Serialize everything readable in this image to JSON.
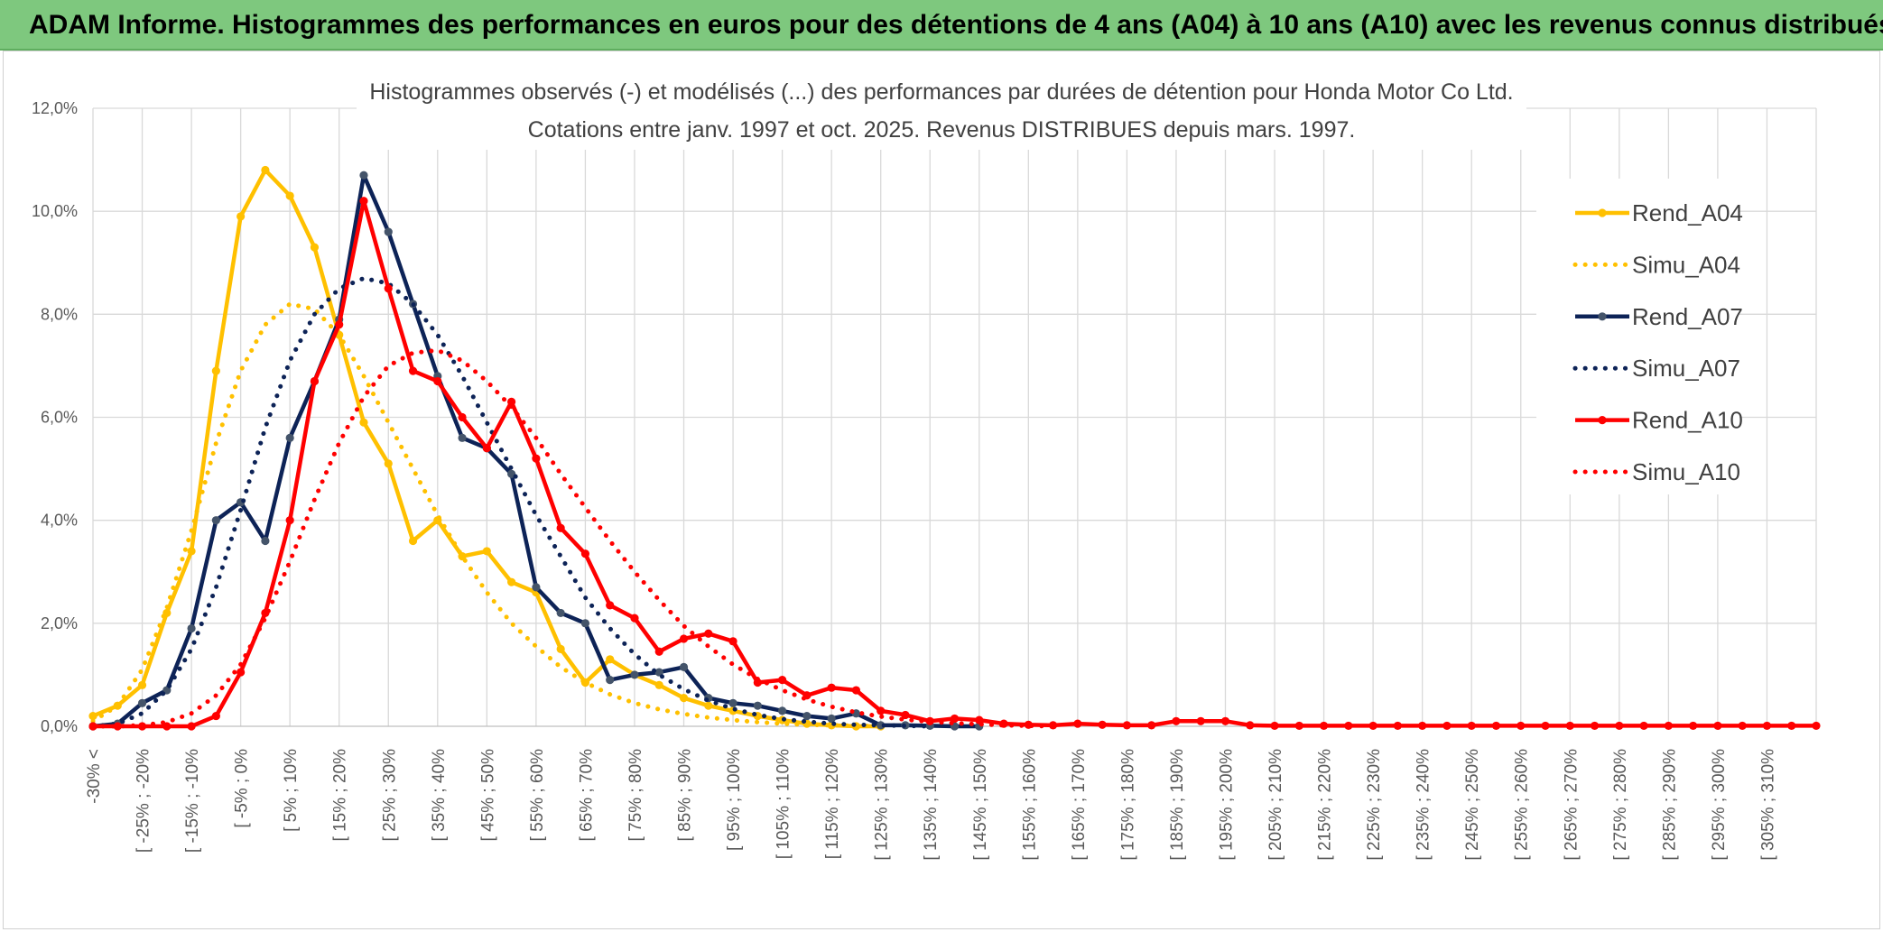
{
  "banner": {
    "title": "ADAM Informe. Histogrammes des performances en euros pour des détentions de 4 ans (A04) à 10 ans (A10) avec les revenus connus distribués"
  },
  "chart_data": {
    "type": "line",
    "title_line1": "Histogrammes observés (-) et modélisés (...) des performances par durées de détention pour Honda Motor Co Ltd.",
    "title_line2": "Cotations entre janv. 1997 et oct. 2025. Revenus DISTRIBUES depuis mars. 1997.",
    "ylim": [
      0,
      12
    ],
    "y_ticks": [
      "0,0%",
      "2,0%",
      "4,0%",
      "6,0%",
      "8,0%",
      "10,0%",
      "12,0%"
    ],
    "x_labels": [
      "-30% <",
      "[ -25% ; -20%",
      "[ -15% ; -10%",
      "[ -5% ; 0%",
      "[ 5% ; 10%",
      "[ 15% ; 20%",
      "[ 25% ; 30%",
      "[ 35% ; 40%",
      "[ 45% ; 50%",
      "[ 55% ; 60%",
      "[ 65% ; 70%",
      "[ 75% ; 80%",
      "[ 85% ; 90%",
      "[ 95% ; 100%",
      "[ 105% ; 110%",
      "[ 115% ; 120%",
      "[ 125% ; 130%",
      "[ 135% ; 140%",
      "[ 145% ; 150%",
      "[ 155% ; 160%",
      "[ 165% ; 170%",
      "[ 175% ; 180%",
      "[ 185% ; 190%",
      "[ 195% ; 200%",
      "[ 205% ; 210%",
      "[ 215% ; 220%",
      "[ 225% ; 230%",
      "[ 235% ; 240%",
      "[ 245% ; 250%",
      "[ 255% ; 260%",
      "[ 265% ; 270%",
      "[ 275% ; 280%",
      "[ 285% ; 290%",
      "[ 295% ; 300%",
      "[ 305% ; 310%"
    ],
    "grid": true,
    "legend_position": "right",
    "series": [
      {
        "name": "Rend_A04",
        "style": "solid",
        "color": "#ffc000",
        "values": [
          0.2,
          0.4,
          0.8,
          2.2,
          3.4,
          6.9,
          9.9,
          10.8,
          10.3,
          9.3,
          7.6,
          5.9,
          5.1,
          3.6,
          4.0,
          3.3,
          3.4,
          2.8,
          2.6,
          1.5,
          0.85,
          1.3,
          1.0,
          0.8,
          0.55,
          0.4,
          0.3,
          0.2,
          0.12,
          0.05,
          0.02,
          0.0,
          0.0
        ]
      },
      {
        "name": "Simu_A04",
        "style": "dotted",
        "color": "#ffc000",
        "values": [
          0.1,
          0.4,
          1.1,
          2.3,
          3.8,
          5.5,
          6.9,
          7.8,
          8.2,
          8.1,
          7.6,
          6.8,
          5.9,
          5.0,
          4.1,
          3.3,
          2.6,
          2.0,
          1.55,
          1.15,
          0.85,
          0.62,
          0.45,
          0.33,
          0.24,
          0.17,
          0.12,
          0.08,
          0.05,
          0.03,
          0.02,
          0.01,
          0.0
        ]
      },
      {
        "name": "Rend_A07",
        "style": "solid",
        "color": "#0d2357",
        "values": [
          0.0,
          0.05,
          0.45,
          0.7,
          1.9,
          4.0,
          4.35,
          3.6,
          5.6,
          6.7,
          7.9,
          10.7,
          9.6,
          8.2,
          6.8,
          5.6,
          5.4,
          4.9,
          2.7,
          2.2,
          2.0,
          0.9,
          1.0,
          1.05,
          1.15,
          0.55,
          0.45,
          0.4,
          0.3,
          0.2,
          0.15,
          0.25,
          0.02,
          0.02,
          0.01,
          0.0,
          0.0
        ]
      },
      {
        "name": "Simu_A07",
        "style": "dotted",
        "color": "#0d2357",
        "values": [
          0.0,
          0.05,
          0.25,
          0.7,
          1.5,
          2.7,
          4.2,
          5.8,
          7.1,
          8.0,
          8.5,
          8.7,
          8.6,
          8.2,
          7.6,
          6.8,
          5.9,
          5.0,
          4.1,
          3.3,
          2.5,
          1.9,
          1.4,
          1.0,
          0.72,
          0.5,
          0.34,
          0.22,
          0.14,
          0.09,
          0.05,
          0.03,
          0.02,
          0.01,
          0.0
        ]
      },
      {
        "name": "Rend_A10",
        "style": "solid",
        "color": "#ff0000",
        "values": [
          0.0,
          0.0,
          0.0,
          0.0,
          0.0,
          0.2,
          1.05,
          2.2,
          4.0,
          6.7,
          7.8,
          10.2,
          8.5,
          6.9,
          6.7,
          6.0,
          5.4,
          6.3,
          5.2,
          3.85,
          3.35,
          2.35,
          2.1,
          1.45,
          1.7,
          1.8,
          1.65,
          0.85,
          0.9,
          0.6,
          0.75,
          0.7,
          0.3,
          0.22,
          0.1,
          0.15,
          0.12,
          0.05,
          0.03,
          0.02,
          0.05,
          0.03,
          0.02,
          0.02,
          0.1,
          0.1,
          0.1,
          0.02,
          0.01,
          0.01,
          0.01,
          0.01,
          0.01,
          0.01,
          0.01,
          0.01,
          0.01,
          0.01,
          0.01,
          0.01,
          0.01,
          0.01,
          0.01,
          0.01,
          0.01,
          0.01,
          0.01,
          0.01,
          0.01,
          0.01,
          0.01
        ]
      },
      {
        "name": "Simu_A10",
        "style": "dotted",
        "color": "#ff0000",
        "values": [
          0.0,
          0.0,
          0.02,
          0.08,
          0.25,
          0.6,
          1.2,
          2.1,
          3.2,
          4.4,
          5.5,
          6.4,
          7.0,
          7.25,
          7.3,
          7.1,
          6.7,
          6.2,
          5.6,
          4.9,
          4.25,
          3.6,
          3.0,
          2.45,
          1.95,
          1.55,
          1.2,
          0.92,
          0.7,
          0.52,
          0.38,
          0.27,
          0.19,
          0.13,
          0.09,
          0.06,
          0.04,
          0.02,
          0.01,
          0.0
        ]
      }
    ]
  }
}
